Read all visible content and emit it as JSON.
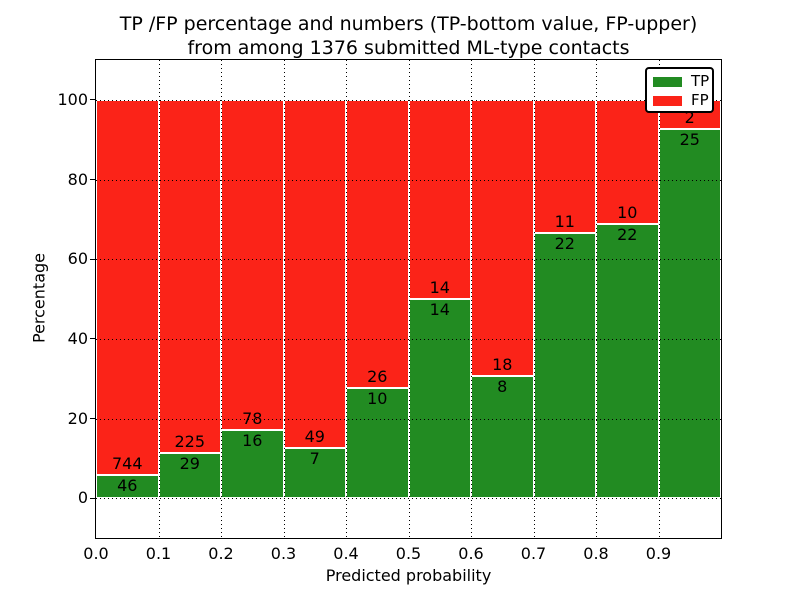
{
  "title": {
    "line1": "TP /FP percentage and numbers (TP-bottom value, FP-upper)",
    "line2": "from among 1376 submitted ML-type contacts"
  },
  "axes": {
    "xlabel": "Predicted probability",
    "ylabel": "Percentage",
    "x_tick_labels": [
      "0.0",
      "0.1",
      "0.2",
      "0.3",
      "0.4",
      "0.5",
      "0.6",
      "0.7",
      "0.8",
      "0.9"
    ],
    "x_tick_values": [
      0.0,
      0.1,
      0.2,
      0.3,
      0.4,
      0.5,
      0.6,
      0.7,
      0.8,
      0.9
    ],
    "y_tick_labels": [
      "0",
      "20",
      "40",
      "60",
      "80",
      "100"
    ],
    "y_tick_values": [
      0,
      20,
      40,
      60,
      80,
      100
    ]
  },
  "legend": {
    "items": [
      {
        "label": "TP",
        "color": "#228b22"
      },
      {
        "label": "FP",
        "color": "#fb2318"
      }
    ]
  },
  "chart_data": {
    "type": "bar",
    "stacked": true,
    "title": "TP /FP percentage and numbers (TP-bottom value, FP-upper) from among 1376 submitted ML-type contacts",
    "xlabel": "Predicted probability",
    "ylabel": "Percentage",
    "xlim": [
      0.0,
      1.0
    ],
    "ylim": [
      -10,
      110
    ],
    "grid": true,
    "legend_position": "upper right",
    "x_bin_edges": [
      0.0,
      0.1,
      0.2,
      0.3,
      0.4,
      0.5,
      0.6,
      0.7,
      0.8,
      0.9,
      1.0
    ],
    "categories": [
      "0.0-0.1",
      "0.1-0.2",
      "0.2-0.3",
      "0.3-0.4",
      "0.4-0.5",
      "0.5-0.6",
      "0.6-0.7",
      "0.7-0.8",
      "0.8-0.9",
      "0.9-1.0"
    ],
    "series": [
      {
        "name": "TP",
        "color": "#228b22",
        "counts": [
          46,
          29,
          16,
          7,
          10,
          14,
          8,
          22,
          22,
          25
        ]
      },
      {
        "name": "FP",
        "color": "#fb2318",
        "counts": [
          744,
          225,
          78,
          49,
          26,
          14,
          18,
          11,
          10,
          2
        ]
      }
    ],
    "percent_tp": [
      5.82,
      11.42,
      17.02,
      12.5,
      27.78,
      50.0,
      30.77,
      66.67,
      68.75,
      92.59
    ],
    "bar_unit": "percent_of_bin_total_stacked_to_100",
    "total_contacts": 1376
  }
}
